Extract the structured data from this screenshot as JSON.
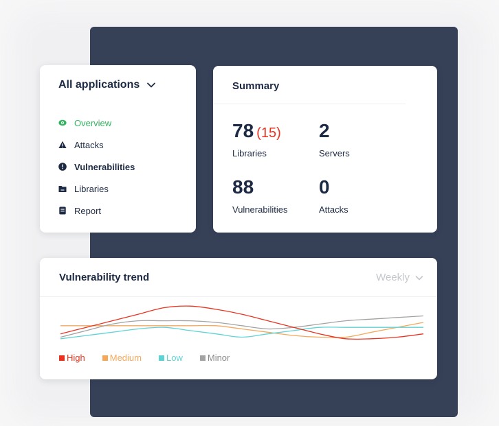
{
  "nav": {
    "app_select": "All applications",
    "items": [
      {
        "label": "Overview",
        "icon": "eye-icon",
        "active": true
      },
      {
        "label": "Attacks",
        "icon": "warning-icon",
        "active": false
      },
      {
        "label": "Vulnerabilities",
        "icon": "alert-circle-icon",
        "active": false
      },
      {
        "label": "Libraries",
        "icon": "folder-icon",
        "active": false
      },
      {
        "label": "Report",
        "icon": "document-icon",
        "active": false
      }
    ]
  },
  "summary": {
    "title": "Summary",
    "libraries": {
      "value": "78",
      "delta": "(15)",
      "label": "Libraries"
    },
    "servers": {
      "value": "2",
      "label": "Servers"
    },
    "vulnerabilities": {
      "value": "88",
      "label": "Vulnerabilities"
    },
    "attacks": {
      "value": "0",
      "label": "Attacks"
    }
  },
  "trend": {
    "title": "Vulnerability trend",
    "period": "Weekly"
  },
  "colors": {
    "accent_green": "#35b460",
    "high": "#e8331f",
    "medium": "#f5a85a",
    "low": "#5ed3d4",
    "minor": "#a3a3a3",
    "navy": "#364158"
  },
  "chart_data": {
    "type": "line",
    "x": [
      0,
      1,
      2,
      3,
      4,
      5,
      6,
      7,
      8,
      9,
      10,
      11,
      12,
      13,
      14
    ],
    "series": [
      {
        "name": "High",
        "color": "#e8331f",
        "values": [
          11,
          13,
          15,
          17,
          19,
          19.5,
          18.5,
          17,
          15,
          13,
          11,
          9.5,
          9.5,
          10,
          11
        ]
      },
      {
        "name": "Medium",
        "color": "#f5a85a",
        "values": [
          13.5,
          13.5,
          13.5,
          13.5,
          13.5,
          13.5,
          13.5,
          12.5,
          11.5,
          10.5,
          10,
          10,
          11.5,
          13,
          14.5
        ]
      },
      {
        "name": "Low",
        "color": "#5ed3d4",
        "values": [
          9.5,
          10.5,
          11.5,
          12.5,
          13,
          12,
          11,
          10,
          11,
          12,
          13,
          13,
          13,
          13,
          13
        ]
      },
      {
        "name": "Minor",
        "color": "#a3a3a3",
        "values": [
          10,
          12,
          14,
          15,
          15,
          15,
          14.5,
          13.5,
          12.5,
          13,
          14,
          15,
          15.5,
          16,
          16.5
        ]
      }
    ],
    "ylim": [
      8,
      21
    ],
    "grid": false,
    "legend": "bottom-left"
  }
}
